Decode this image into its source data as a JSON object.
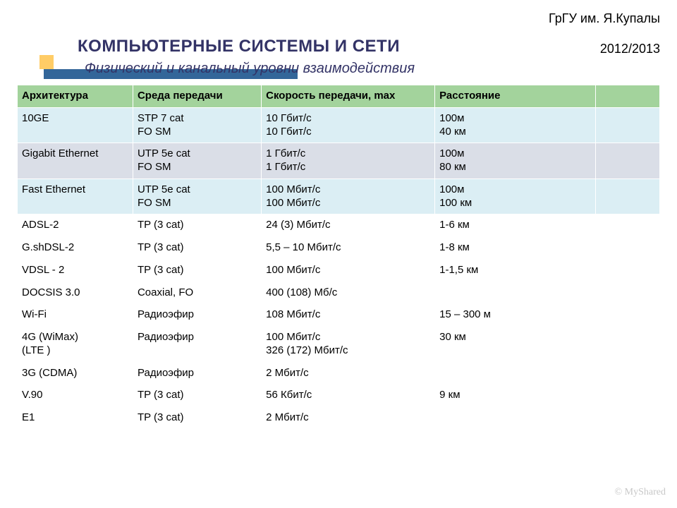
{
  "header": {
    "institution": "ГрГУ им. Я.Купалы",
    "year": "2012/2013"
  },
  "title": "КОМПЬЮТЕРНЫЕ СИСТЕМЫ  И СЕТИ",
  "subtitle": "Физический и канальный уровни взаимодействия",
  "watermark": "© MyShared",
  "table": {
    "header_bg": "#a3d39c",
    "row_bg_alt1": "#dbeef4",
    "row_bg_alt2": "#dadee7",
    "row_bg_plain": "#ffffff",
    "border_color": "#ffffff",
    "font_size": 15,
    "columns": [
      "Архитектура",
      "Среда передачи",
      "Скорость передачи, max",
      "Расстояние",
      ""
    ],
    "rows": [
      {
        "bg": "#dbeef4",
        "cells": [
          "10GE",
          "STP 7 cat\nFO SM",
          "10 Гбит/с\n10 Гбит/с",
          "100м\n40 км",
          ""
        ]
      },
      {
        "bg": "#dadee7",
        "cells": [
          "Gigabit Ethernet",
          "UTP 5e cat\nFO SM",
          "1 Гбит/с\n1 Гбит/с",
          "100м\n80 км",
          ""
        ]
      },
      {
        "bg": "#dbeef4",
        "cells": [
          "Fast Ethernet",
          "UTP 5e cat\nFO SM",
          "100 Мбит/с\n100 Мбит/с",
          "100м\n100 км",
          ""
        ]
      },
      {
        "bg": "#ffffff",
        "cells": [
          "ADSL-2",
          "TP (3 cat)",
          "24 (3) Мбит/с",
          "1-6 км",
          ""
        ]
      },
      {
        "bg": "#ffffff",
        "cells": [
          "G.shDSL-2",
          "TP (3 cat)",
          "5,5 – 10 Мбит/с",
          "1-8 км",
          ""
        ]
      },
      {
        "bg": "#ffffff",
        "cells": [
          "VDSL - 2",
          "TP (3 cat)",
          "100 Мбит/с",
          "1-1,5 км",
          ""
        ]
      },
      {
        "bg": "#ffffff",
        "cells": [
          "DOCSIS 3.0",
          "Coaxial, FO",
          "400 (108) Мб/с",
          "",
          ""
        ]
      },
      {
        "bg": "#ffffff",
        "cells": [
          "Wi-Fi",
          "Радиоэфир",
          "108 Мбит/с",
          "15 – 300 м",
          ""
        ]
      },
      {
        "bg": "#ffffff",
        "cells": [
          "4G (WiMax)\n     (LTE )",
          "Радиоэфир",
          "100 Мбит/с\n326 (172) Мбит/с",
          "30 км",
          ""
        ]
      },
      {
        "bg": "#ffffff",
        "cells": [
          "3G (CDMA)",
          "Радиоэфир",
          "2 Мбит/с",
          "",
          ""
        ]
      },
      {
        "bg": "#ffffff",
        "cells": [
          "V.90",
          "TP (3 cat)",
          "56 Кбит/с",
          "9 км",
          ""
        ]
      },
      {
        "bg": "#ffffff",
        "cells": [
          "E1",
          "TP (3 cat)",
          "2 Мбит/с",
          "",
          ""
        ]
      }
    ]
  },
  "colors": {
    "title_color": "#333366",
    "ornament_square": "#ffcc66",
    "ornament_bar": "#336699",
    "background": "#ffffff"
  }
}
